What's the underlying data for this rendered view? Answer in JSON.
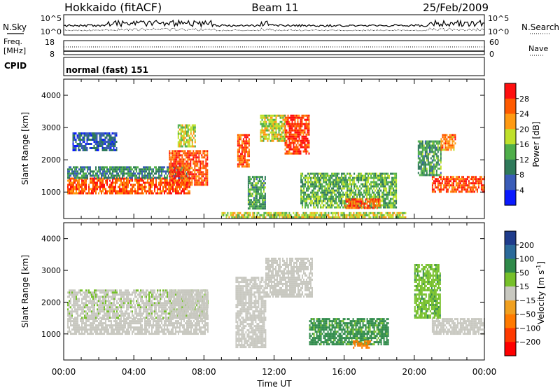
{
  "header": {
    "station": "Hokkaido (fitACF)",
    "beam": "Beam 11",
    "date": "25/Feb/2009"
  },
  "strip": {
    "nsky_label": "N.Sky",
    "nsky_ticks": [
      "10^5",
      "10^0"
    ],
    "nsearch_label": "N.Search",
    "nsearch_ticks": [
      "10^5",
      "10^0"
    ],
    "freq_label": "Freq.",
    "freq_unit": "[MHz]",
    "freq_ticks": [
      "18",
      "8"
    ],
    "nave_label": "Nave",
    "nave_ticks": [
      "60",
      "0"
    ],
    "cpid_label": "CPID",
    "cpid_value": "normal (fast) 151"
  },
  "chart_data": [
    {
      "type": "heatmap",
      "panel": "power",
      "ylabel": "Slant Range [km]",
      "xlabel": "Time UT",
      "x_ticks": [
        "00:00",
        "04:00",
        "08:00",
        "12:00",
        "16:00",
        "20:00",
        "00:00"
      ],
      "xlim_hours": [
        0,
        24
      ],
      "y_ticks": [
        1000,
        2000,
        3000,
        4000
      ],
      "ylim": [
        180,
        4500
      ],
      "colorbar": {
        "label": "Power [dB]",
        "ticks": [
          4,
          8,
          12,
          16,
          20,
          24,
          28
        ],
        "colors": [
          "#0a1aff",
          "#3a5cb8",
          "#2f7a5a",
          "#4fae4a",
          "#bfe02a",
          "#ff9a12",
          "#ff5a00",
          "#ff0f0f"
        ]
      },
      "regions": [
        {
          "t0": 0.2,
          "t1": 7.2,
          "r0": 950,
          "r1": 1450,
          "value": 26
        },
        {
          "t0": 0.2,
          "t1": 7.2,
          "r0": 1450,
          "r1": 1800,
          "value": 10
        },
        {
          "t0": 6.0,
          "t1": 8.2,
          "r0": 1200,
          "r1": 2300,
          "value": 27
        },
        {
          "t0": 0.5,
          "t1": 3.0,
          "r0": 2300,
          "r1": 2850,
          "value": 7
        },
        {
          "t0": 6.5,
          "t1": 7.5,
          "r0": 2400,
          "r1": 3100,
          "value": 18
        },
        {
          "t0": 9.9,
          "t1": 10.6,
          "r0": 1800,
          "r1": 2800,
          "value": 26
        },
        {
          "t0": 12.6,
          "t1": 14.0,
          "r0": 2200,
          "r1": 3400,
          "value": 28
        },
        {
          "t0": 11.2,
          "t1": 12.6,
          "r0": 2600,
          "r1": 3400,
          "value": 18
        },
        {
          "t0": 10.5,
          "t1": 11.5,
          "r0": 500,
          "r1": 1500,
          "value": 12
        },
        {
          "t0": 13.5,
          "t1": 19.0,
          "r0": 500,
          "r1": 1600,
          "value": 14
        },
        {
          "t0": 16.0,
          "t1": 18.0,
          "r0": 500,
          "r1": 800,
          "value": 26
        },
        {
          "t0": 21.0,
          "t1": 24.0,
          "r0": 1000,
          "r1": 1500,
          "value": 27
        },
        {
          "t0": 20.2,
          "t1": 21.5,
          "r0": 1500,
          "r1": 2600,
          "value": 12
        },
        {
          "t0": 21.5,
          "t1": 22.3,
          "r0": 2300,
          "r1": 2800,
          "value": 24
        },
        {
          "t0": 9.0,
          "t1": 19.5,
          "r0": 200,
          "r1": 380,
          "value": 18
        }
      ]
    },
    {
      "type": "heatmap",
      "panel": "velocity",
      "ylabel": "Slant Range [km]",
      "xlabel": "Time UT",
      "x_ticks": [
        "00:00",
        "04:00",
        "08:00",
        "12:00",
        "16:00",
        "20:00",
        "00:00"
      ],
      "xlim_hours": [
        0,
        24
      ],
      "y_ticks": [
        1000,
        2000,
        3000,
        4000
      ],
      "ylim": [
        180,
        4500
      ],
      "colorbar": {
        "label": "Velocity [m s",
        "label_sup": "-1",
        "label_close": "]",
        "ticks": [
          200,
          100,
          50,
          15,
          -15,
          -50,
          -100,
          -200
        ],
        "colors": [
          "#1f3c8c",
          "#2b6a9a",
          "#2f8a4a",
          "#76c02a",
          "#c8c8c0",
          "#f0a020",
          "#ff7a00",
          "#ff3a00",
          "#ff0000"
        ]
      },
      "regions": [
        {
          "t0": 0.2,
          "t1": 8.2,
          "r0": 1000,
          "r1": 1500,
          "value": 0
        },
        {
          "t0": 0.2,
          "t1": 8.2,
          "r0": 1500,
          "r1": 2400,
          "value": 5
        },
        {
          "t0": 6.0,
          "t1": 8.2,
          "r0": 1500,
          "r1": 2400,
          "value": 0
        },
        {
          "t0": 9.8,
          "t1": 11.5,
          "r0": 600,
          "r1": 2800,
          "value": 0
        },
        {
          "t0": 11.5,
          "t1": 14.2,
          "r0": 2200,
          "r1": 3400,
          "value": 0
        },
        {
          "t0": 14.0,
          "t1": 18.5,
          "r0": 700,
          "r1": 1500,
          "value": 60
        },
        {
          "t0": 16.5,
          "t1": 17.5,
          "r0": 600,
          "r1": 800,
          "value": -60
        },
        {
          "t0": 21.0,
          "t1": 24.0,
          "r0": 1000,
          "r1": 1500,
          "value": 0
        },
        {
          "t0": 20.0,
          "t1": 21.5,
          "r0": 1500,
          "r1": 3200,
          "value": 40
        }
      ]
    }
  ]
}
